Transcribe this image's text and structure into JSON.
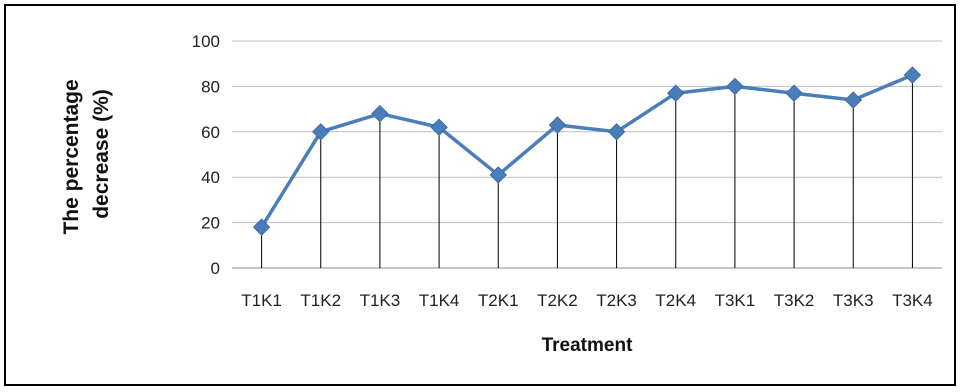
{
  "chart_data": {
    "type": "line",
    "categories": [
      "T1K1",
      "T1K2",
      "T1K3",
      "T1K4",
      "T2K1",
      "T2K2",
      "T2K3",
      "T2K4",
      "T3K1",
      "T3K2",
      "T3K3",
      "T3K4"
    ],
    "series": [
      {
        "values": [
          18,
          60,
          68,
          62,
          41,
          63,
          60,
          77,
          80,
          77,
          74,
          85
        ]
      }
    ],
    "ylim": [
      0,
      100
    ],
    "yticks": [
      0,
      20,
      40,
      60,
      80,
      100
    ],
    "xlabel": "Treatment",
    "ylabel_lines": [
      "The percentage",
      "decrease (%)"
    ],
    "grid": "horizontal",
    "drop_lines": true,
    "marker": "diamond",
    "colors": {
      "series": "#4a7ebb",
      "grid": "#bfbfbf",
      "drop": "#000000"
    }
  }
}
